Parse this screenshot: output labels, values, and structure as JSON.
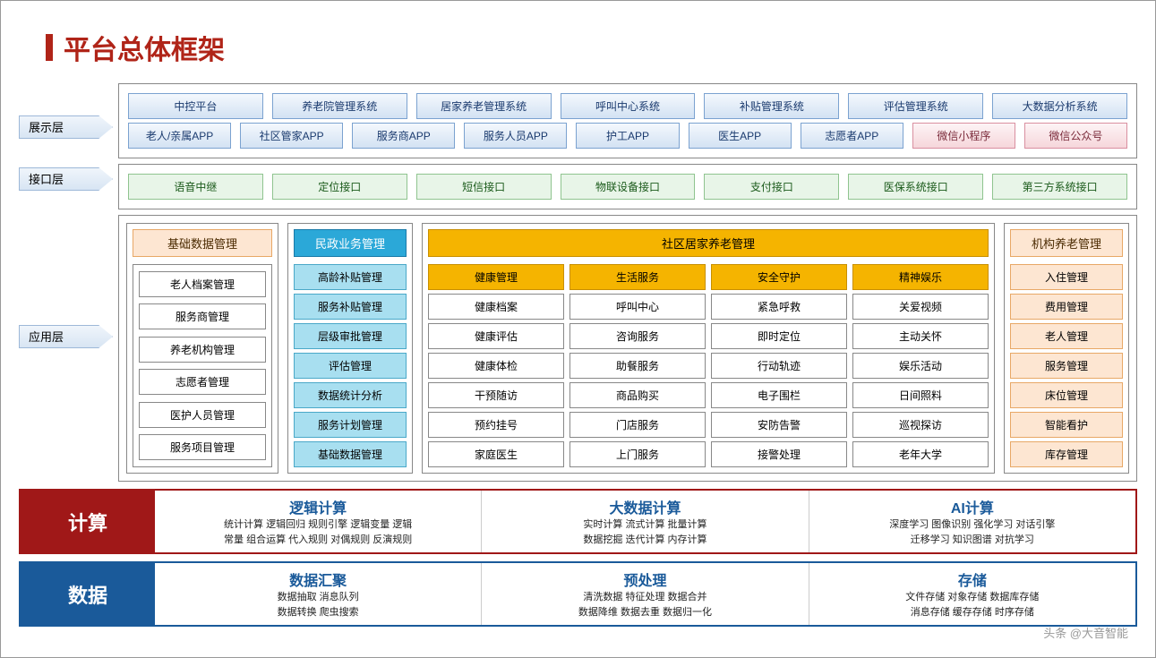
{
  "title": "平台总体框架",
  "colors": {
    "accent_red": "#b02418",
    "band_red": "#a01818",
    "band_blue": "#1a5a9a",
    "chip_blue_border": "#7ba2d0",
    "chip_pink_border": "#d98fa0",
    "chip_green_border": "#8fc48f",
    "head_cyan": "#2ba8d8",
    "head_yellow": "#f5b400",
    "head_peach": "#fde6d2"
  },
  "layers": {
    "display": {
      "label": "展示层"
    },
    "interface": {
      "label": "接口层"
    },
    "app": {
      "label": "应用层"
    },
    "compute": {
      "label": "计算"
    },
    "data": {
      "label": "数据"
    }
  },
  "display_row1": [
    "中控平台",
    "养老院管理系统",
    "居家养老管理系统",
    "呼叫中心系统",
    "补贴管理系统",
    "评估管理系统",
    "大数据分析系统"
  ],
  "display_row2_blue": [
    "老人/亲属APP",
    "社区管家APP",
    "服务商APP",
    "服务人员APP",
    "护工APP",
    "医生APP",
    "志愿者APP"
  ],
  "display_row2_pink": [
    "微信小程序",
    "微信公众号"
  ],
  "interface_row": [
    "语音中继",
    "定位接口",
    "短信接口",
    "物联设备接口",
    "支付接口",
    "医保系统接口",
    "第三方系统接口"
  ],
  "app": {
    "basic": {
      "head": "基础数据管理",
      "items": [
        "老人档案管理",
        "服务商管理",
        "养老机构管理",
        "志愿者管理",
        "医护人员管理",
        "服务项目管理"
      ]
    },
    "civil": {
      "head": "民政业务管理",
      "items": [
        "高龄补贴管理",
        "服务补贴管理",
        "层级审批管理",
        "评估管理",
        "数据统计分析",
        "服务计划管理",
        "基础数据管理"
      ]
    },
    "community": {
      "head": "社区居家养老管理",
      "cols": [
        {
          "head": "健康管理",
          "items": [
            "健康档案",
            "健康评估",
            "健康体检",
            "干预随访",
            "预约挂号",
            "家庭医生"
          ]
        },
        {
          "head": "生活服务",
          "items": [
            "呼叫中心",
            "咨询服务",
            "助餐服务",
            "商品购买",
            "门店服务",
            "上门服务"
          ]
        },
        {
          "head": "安全守护",
          "items": [
            "紧急呼救",
            "即时定位",
            "行动轨迹",
            "电子围栏",
            "安防告警",
            "接警处理"
          ]
        },
        {
          "head": "精神娱乐",
          "items": [
            "关爱视频",
            "主动关怀",
            "娱乐活动",
            "日间照料",
            "巡视探访",
            "老年大学"
          ]
        }
      ]
    },
    "org": {
      "head": "机构养老管理",
      "items": [
        "入住管理",
        "费用管理",
        "老人管理",
        "服务管理",
        "床位管理",
        "智能看护",
        "库存管理"
      ]
    }
  },
  "compute": [
    {
      "title": "逻辑计算",
      "line1": "统计计算 逻辑回归 规则引擎 逻辑变量 逻辑",
      "line2": "常量 组合运算 代入规则 对偶规则 反演规则"
    },
    {
      "title": "大数据计算",
      "line1": "实时计算 流式计算 批量计算",
      "line2": "数据挖掘 迭代计算 内存计算"
    },
    {
      "title": "AI计算",
      "line1": "深度学习 图像识别 强化学习 对话引擎",
      "line2": "迁移学习 知识图谱 对抗学习"
    }
  ],
  "data": [
    {
      "title": "数据汇聚",
      "line1": "数据抽取 消息队列",
      "line2": "数据转换 爬虫搜索"
    },
    {
      "title": "预处理",
      "line1": "清洗数据 特征处理 数据合并",
      "line2": "数据降维 数据去重 数据归一化"
    },
    {
      "title": "存储",
      "line1": "文件存储 对象存储 数据库存储",
      "line2": "消息存储 缓存存储 时序存储"
    }
  ],
  "watermark": "头条 @大音智能"
}
